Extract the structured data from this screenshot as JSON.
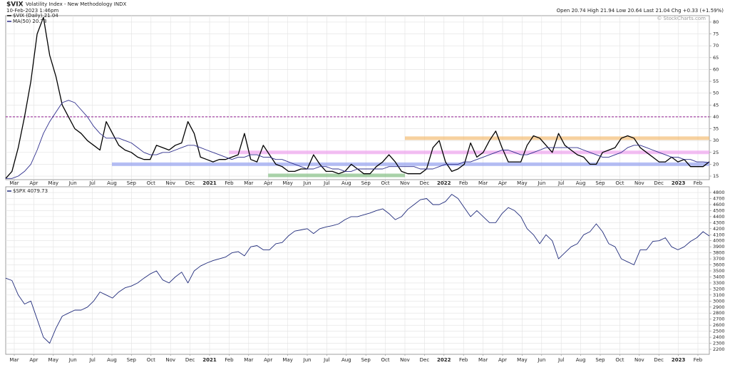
{
  "chart_data": [
    {
      "type": "line",
      "title": "$VIX",
      "subtitle": "Volatility Index - New Methodology INDX",
      "date": "10-Feb-2023 1:46pm",
      "quote": "Open 20.74 High 21.94 Low 20.64 Last 21.04 Chg +0.33 (+1.59%)",
      "credit": "© StockCharts.com",
      "ylim": [
        13.5,
        82.7
      ],
      "yticks": [
        15,
        20,
        25,
        30,
        35,
        40,
        45,
        50,
        55,
        60,
        65,
        70,
        75,
        80
      ],
      "grid": true,
      "xticks": [
        {
          "value": "2020-03",
          "label": "Mar"
        },
        {
          "value": "2020-04",
          "label": "Apr"
        },
        {
          "value": "2020-05",
          "label": "May"
        },
        {
          "value": "2020-06",
          "label": "Jun"
        },
        {
          "value": "2020-07",
          "label": "Jul"
        },
        {
          "value": "2020-08",
          "label": "Aug"
        },
        {
          "value": "2020-09",
          "label": "Sep"
        },
        {
          "value": "2020-10",
          "label": "Oct"
        },
        {
          "value": "2020-11",
          "label": "Nov"
        },
        {
          "value": "2020-12",
          "label": "Dec"
        },
        {
          "value": "2021-01",
          "label": "2021"
        },
        {
          "value": "2021-02",
          "label": "Feb"
        },
        {
          "value": "2021-03",
          "label": "Mar"
        },
        {
          "value": "2021-04",
          "label": "Apr"
        },
        {
          "value": "2021-05",
          "label": "May"
        },
        {
          "value": "2021-06",
          "label": "Jun"
        },
        {
          "value": "2021-07",
          "label": "Jul"
        },
        {
          "value": "2021-08",
          "label": "Aug"
        },
        {
          "value": "2021-09",
          "label": "Sep"
        },
        {
          "value": "2021-10",
          "label": "Oct"
        },
        {
          "value": "2021-11",
          "label": "Nov"
        },
        {
          "value": "2021-12",
          "label": "Dec"
        },
        {
          "value": "2022-01",
          "label": "2022"
        },
        {
          "value": "2022-02",
          "label": "Feb"
        },
        {
          "value": "2022-03",
          "label": "Mar"
        },
        {
          "value": "2022-04",
          "label": "Apr"
        },
        {
          "value": "2022-05",
          "label": "May"
        },
        {
          "value": "2022-06",
          "label": "Jun"
        },
        {
          "value": "2022-07",
          "label": "Jul"
        },
        {
          "value": "2022-08",
          "label": "Aug"
        },
        {
          "value": "2022-09",
          "label": "Sep"
        },
        {
          "value": "2022-10",
          "label": "Oct"
        },
        {
          "value": "2022-11",
          "label": "Nov"
        },
        {
          "value": "2022-12",
          "label": "Dec"
        },
        {
          "value": "2023-01",
          "label": "2023"
        },
        {
          "value": "2023-02",
          "label": "Feb"
        }
      ],
      "levels": [
        {
          "value": 40,
          "color": "#8e1b8e",
          "style": "dashed"
        },
        {
          "value": 31,
          "color": "#f3b96a",
          "style": "band",
          "from": "2021-11"
        },
        {
          "value": 25,
          "color": "#ee9cee",
          "style": "band",
          "from": "2021-02"
        },
        {
          "value": 20,
          "color": "#8f9cf0",
          "style": "band",
          "from": "2020-08"
        },
        {
          "value": 15.3,
          "color": "#7dbb7d",
          "style": "band",
          "from": "2021-04",
          "to": "2021-11"
        }
      ],
      "series": [
        {
          "name": "$VIX (Daily) 21.04",
          "color": "#000000",
          "width": 1.3,
          "values": [
            14,
            17,
            27,
            40,
            55,
            75,
            82,
            66,
            57,
            45,
            40,
            35,
            33,
            30,
            28,
            26,
            38,
            33,
            28,
            26,
            25,
            23,
            22,
            22,
            28,
            27,
            26,
            28,
            29,
            38,
            33,
            23,
            22,
            21,
            22,
            22,
            23,
            24,
            33,
            22,
            21,
            28,
            24,
            20,
            19,
            17,
            17,
            18,
            18,
            24,
            20,
            17,
            17,
            16,
            17,
            20,
            18,
            16,
            16,
            19,
            21,
            24,
            21,
            17,
            16,
            16,
            16,
            18,
            27,
            30,
            21,
            17,
            18,
            20,
            29,
            23,
            25,
            30,
            34,
            27,
            21,
            21,
            21,
            28,
            32,
            31,
            28,
            25,
            33,
            28,
            26,
            24,
            23,
            20,
            20,
            25,
            26,
            27,
            31,
            32,
            31,
            27,
            25,
            23,
            21,
            21,
            23,
            21,
            22,
            19,
            19,
            19,
            21.04
          ]
        },
        {
          "name": "MA(50) 20.73",
          "color": "#2e2e8c",
          "width": 0.9,
          "values": [
            14,
            14,
            15,
            17,
            20,
            26,
            33,
            38,
            42,
            46,
            47,
            46,
            43,
            40,
            36,
            33,
            31,
            31,
            31,
            30,
            29,
            27,
            25,
            24,
            24,
            25,
            25,
            26,
            27,
            28,
            28,
            27,
            26,
            25,
            24,
            23,
            22,
            23,
            23,
            24,
            24,
            23,
            23,
            22,
            22,
            21,
            20,
            19,
            18,
            18,
            19,
            19,
            18,
            18,
            17,
            17,
            18,
            18,
            18,
            18,
            18,
            19,
            19,
            19,
            19,
            19,
            18,
            18,
            18,
            19,
            20,
            20,
            20,
            21,
            21,
            22,
            23,
            24,
            25,
            26,
            26,
            25,
            24,
            24,
            25,
            26,
            27,
            27,
            27,
            27,
            27,
            27,
            26,
            25,
            24,
            23,
            23,
            24,
            25,
            27,
            28,
            28,
            27,
            26,
            25,
            24,
            23,
            23,
            22,
            22,
            21,
            21,
            20.73
          ]
        }
      ]
    },
    {
      "type": "line",
      "ylim": [
        2117,
        4895
      ],
      "yticks": [
        2200,
        2300,
        2400,
        2500,
        2600,
        2700,
        2800,
        2900,
        3000,
        3100,
        3200,
        3300,
        3400,
        3500,
        3600,
        3700,
        3800,
        3900,
        4000,
        4100,
        4200,
        4300,
        4400,
        4500,
        4600,
        4700,
        4800
      ],
      "grid": true,
      "xticks": [
        {
          "value": "2020-03",
          "label": "Mar"
        },
        {
          "value": "2020-04",
          "label": "Apr"
        },
        {
          "value": "2020-05",
          "label": "May"
        },
        {
          "value": "2020-06",
          "label": "Jun"
        },
        {
          "value": "2020-07",
          "label": "Jul"
        },
        {
          "value": "2020-08",
          "label": "Aug"
        },
        {
          "value": "2020-09",
          "label": "Sep"
        },
        {
          "value": "2020-10",
          "label": "Oct"
        },
        {
          "value": "2020-11",
          "label": "Nov"
        },
        {
          "value": "2020-12",
          "label": "Dec"
        },
        {
          "value": "2021-01",
          "label": "2021"
        },
        {
          "value": "2021-02",
          "label": "Feb"
        },
        {
          "value": "2021-03",
          "label": "Mar"
        },
        {
          "value": "2021-04",
          "label": "Apr"
        },
        {
          "value": "2021-05",
          "label": "May"
        },
        {
          "value": "2021-06",
          "label": "Jun"
        },
        {
          "value": "2021-07",
          "label": "Jul"
        },
        {
          "value": "2021-08",
          "label": "Aug"
        },
        {
          "value": "2021-09",
          "label": "Sep"
        },
        {
          "value": "2021-10",
          "label": "Oct"
        },
        {
          "value": "2021-11",
          "label": "Nov"
        },
        {
          "value": "2021-12",
          "label": "Dec"
        },
        {
          "value": "2022-01",
          "label": "2022"
        },
        {
          "value": "2022-02",
          "label": "Feb"
        },
        {
          "value": "2022-03",
          "label": "Mar"
        },
        {
          "value": "2022-04",
          "label": "Apr"
        },
        {
          "value": "2022-05",
          "label": "May"
        },
        {
          "value": "2022-06",
          "label": "Jun"
        },
        {
          "value": "2022-07",
          "label": "Jul"
        },
        {
          "value": "2022-08",
          "label": "Aug"
        },
        {
          "value": "2022-09",
          "label": "Sep"
        },
        {
          "value": "2022-10",
          "label": "Oct"
        },
        {
          "value": "2022-11",
          "label": "Nov"
        },
        {
          "value": "2022-12",
          "label": "Dec"
        },
        {
          "value": "2023-01",
          "label": "2023"
        },
        {
          "value": "2023-02",
          "label": "Feb"
        }
      ],
      "series": [
        {
          "name": "$SPX 4079.73",
          "color": "#1f2a7a",
          "width": 0.9,
          "values": [
            3380,
            3340,
            3100,
            2950,
            3000,
            2700,
            2400,
            2300,
            2550,
            2750,
            2800,
            2850,
            2850,
            2900,
            3000,
            3150,
            3100,
            3050,
            3150,
            3220,
            3250,
            3300,
            3380,
            3450,
            3500,
            3350,
            3300,
            3400,
            3480,
            3300,
            3500,
            3580,
            3630,
            3670,
            3700,
            3730,
            3800,
            3820,
            3750,
            3900,
            3920,
            3850,
            3850,
            3950,
            3970,
            4080,
            4160,
            4180,
            4200,
            4120,
            4200,
            4230,
            4250,
            4280,
            4350,
            4400,
            4400,
            4430,
            4460,
            4500,
            4530,
            4450,
            4350,
            4400,
            4520,
            4600,
            4680,
            4700,
            4600,
            4600,
            4650,
            4770,
            4700,
            4550,
            4400,
            4500,
            4400,
            4300,
            4300,
            4450,
            4550,
            4500,
            4400,
            4200,
            4100,
            3950,
            4100,
            4000,
            3700,
            3800,
            3900,
            3950,
            4100,
            4150,
            4280,
            4150,
            3950,
            3900,
            3700,
            3650,
            3600,
            3850,
            3850,
            3990,
            4000,
            4050,
            3900,
            3850,
            3900,
            3990,
            4050,
            4150,
            4079.73
          ]
        }
      ]
    }
  ]
}
